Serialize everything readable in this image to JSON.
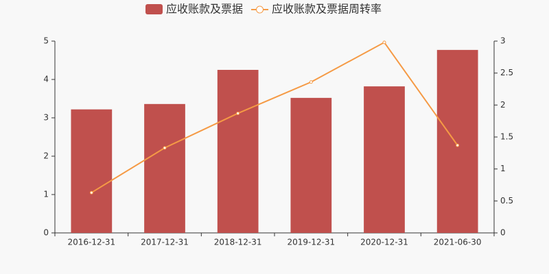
{
  "chart_data": {
    "type": "combo",
    "categories": [
      "2016-12-31",
      "2017-12-31",
      "2018-12-31",
      "2019-12-31",
      "2020-12-31",
      "2021-06-30"
    ],
    "series": [
      {
        "name": "应收账款及票据",
        "type": "bar",
        "color": "#c0504d",
        "values": [
          3.22,
          3.36,
          4.25,
          3.52,
          3.82,
          4.77
        ]
      },
      {
        "name": "应收账款及票据周转率",
        "type": "line",
        "axis": "y2",
        "color": "#f59a45",
        "values": [
          0.63,
          1.33,
          1.87,
          2.36,
          2.98,
          1.37
        ]
      }
    ],
    "ylim": [
      0,
      5
    ],
    "yticks": [
      0,
      1,
      2,
      3,
      4,
      5
    ],
    "y2lim": [
      0,
      3
    ],
    "y2ticks": [
      0,
      0.5,
      1,
      1.5,
      2,
      2.5,
      3
    ],
    "grid": false
  }
}
